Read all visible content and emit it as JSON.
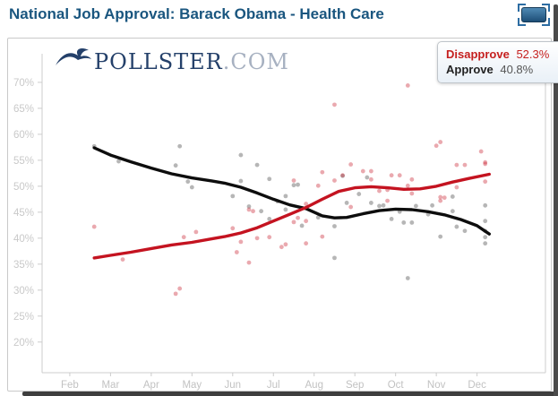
{
  "header": {
    "title": "National Job Approval: Barack Obama - Health Care"
  },
  "icons": {
    "embed": "selection-frame-icon",
    "logo": "pollster-bird-icon"
  },
  "branding": {
    "name": "POLLSTER",
    "suffix": ".COM"
  },
  "legend": {
    "items": [
      {
        "label": "Disapprove",
        "value": "52.3%",
        "color": "#c5201f"
      },
      {
        "label": "Approve",
        "value": "40.8%",
        "color": "#222222"
      }
    ]
  },
  "chart_data": {
    "type": "scatter",
    "title": "National Job Approval: Barack Obama - Health Care",
    "xlabel": "",
    "ylabel": "",
    "xlim": [
      1.32,
      13.68
    ],
    "ylim": [
      14.1,
      72.4
    ],
    "grid": false,
    "legend_position": "top-right",
    "colors": {
      "axis": "#cccccc",
      "y_tick_text": "#c9c9c9",
      "x_tick_text": "#c2c2c2"
    },
    "x_axis": {
      "ticks": [
        {
          "value": 2,
          "label": "Feb"
        },
        {
          "value": 3,
          "label": "Mar"
        },
        {
          "value": 4,
          "label": "Apr"
        },
        {
          "value": 5,
          "label": "May"
        },
        {
          "value": 6,
          "label": "Jun"
        },
        {
          "value": 7,
          "label": "Jul"
        },
        {
          "value": 8,
          "label": "Aug"
        },
        {
          "value": 9,
          "label": "Sep"
        },
        {
          "value": 10,
          "label": "Oct"
        },
        {
          "value": 11,
          "label": "Nov"
        },
        {
          "value": 12,
          "label": "Dec"
        }
      ]
    },
    "y_axis": {
      "ticks": [
        {
          "value": 70,
          "label": "70%"
        },
        {
          "value": 65,
          "label": "65%"
        },
        {
          "value": 60,
          "label": "60%"
        },
        {
          "value": 55,
          "label": "55%"
        },
        {
          "value": 50,
          "label": "50%"
        },
        {
          "value": 45,
          "label": "45%"
        },
        {
          "value": 40,
          "label": "40%"
        },
        {
          "value": 35,
          "label": "35%"
        },
        {
          "value": 30,
          "label": "30%"
        },
        {
          "value": 25,
          "label": "25%"
        },
        {
          "value": 20,
          "label": "20%"
        }
      ]
    },
    "series": [
      {
        "name": "Approve",
        "final_value": 40.8,
        "line_color": "#0d0d0d",
        "point_color": "rgba(110,110,110,0.5)",
        "trend": [
          [
            2.6,
            57.4
          ],
          [
            3.0,
            56.0
          ],
          [
            3.5,
            54.7
          ],
          [
            4.0,
            53.5
          ],
          [
            4.5,
            52.4
          ],
          [
            5.0,
            51.6
          ],
          [
            5.5,
            51.0
          ],
          [
            5.8,
            50.6
          ],
          [
            6.2,
            49.8
          ],
          [
            6.6,
            48.7
          ],
          [
            7.0,
            47.5
          ],
          [
            7.4,
            46.4
          ],
          [
            7.8,
            45.7
          ],
          [
            8.2,
            44.3
          ],
          [
            8.5,
            43.9
          ],
          [
            8.8,
            44.0
          ],
          [
            9.2,
            44.7
          ],
          [
            9.6,
            45.3
          ],
          [
            10.0,
            45.6
          ],
          [
            10.4,
            45.5
          ],
          [
            10.8,
            45.1
          ],
          [
            11.2,
            44.5
          ],
          [
            11.6,
            43.6
          ],
          [
            12.0,
            42.4
          ],
          [
            12.3,
            40.8
          ]
        ],
        "points": [
          [
            2.6,
            57.7
          ],
          [
            3.2,
            54.8
          ],
          [
            4.6,
            54.0
          ],
          [
            4.7,
            57.7
          ],
          [
            4.9,
            50.9
          ],
          [
            5.0,
            49.8
          ],
          [
            6.0,
            48.1
          ],
          [
            6.2,
            56.0
          ],
          [
            6.2,
            51.0
          ],
          [
            6.4,
            46.1
          ],
          [
            6.6,
            54.1
          ],
          [
            6.7,
            45.2
          ],
          [
            6.9,
            51.4
          ],
          [
            6.9,
            43.7
          ],
          [
            7.1,
            47.1
          ],
          [
            7.3,
            48.1
          ],
          [
            7.3,
            45.5
          ],
          [
            7.5,
            50.2
          ],
          [
            7.6,
            50.3
          ],
          [
            7.7,
            42.4
          ],
          [
            8.1,
            44.0
          ],
          [
            8.5,
            42.3
          ],
          [
            8.5,
            36.2
          ],
          [
            8.7,
            52.0
          ],
          [
            8.8,
            46.8
          ],
          [
            9.1,
            48.5
          ],
          [
            9.3,
            51.7
          ],
          [
            9.4,
            46.8
          ],
          [
            9.6,
            46.2
          ],
          [
            9.7,
            46.3
          ],
          [
            9.9,
            43.7
          ],
          [
            10.1,
            45.1
          ],
          [
            10.2,
            43.0
          ],
          [
            10.3,
            32.3
          ],
          [
            10.4,
            43.0
          ],
          [
            10.5,
            46.2
          ],
          [
            10.8,
            44.6
          ],
          [
            10.9,
            46.3
          ],
          [
            11.1,
            40.3
          ],
          [
            11.4,
            48.0
          ],
          [
            11.4,
            45.2
          ],
          [
            11.5,
            42.2
          ],
          [
            11.7,
            41.4
          ],
          [
            12.2,
            46.3
          ],
          [
            12.2,
            43.3
          ],
          [
            12.2,
            41.4
          ],
          [
            12.2,
            40.2
          ],
          [
            12.2,
            39.0
          ]
        ]
      },
      {
        "name": "Disapprove",
        "final_value": 52.3,
        "line_color": "#c41320",
        "point_color": "rgba(200,30,45,0.38)",
        "trend": [
          [
            2.6,
            36.2
          ],
          [
            3.0,
            36.7
          ],
          [
            3.5,
            37.3
          ],
          [
            4.0,
            38.0
          ],
          [
            4.5,
            38.7
          ],
          [
            5.0,
            39.2
          ],
          [
            5.5,
            39.9
          ],
          [
            5.8,
            40.3
          ],
          [
            6.2,
            41.0
          ],
          [
            6.6,
            42.0
          ],
          [
            7.0,
            43.3
          ],
          [
            7.4,
            44.6
          ],
          [
            7.8,
            45.9
          ],
          [
            8.2,
            47.5
          ],
          [
            8.6,
            49.0
          ],
          [
            9.0,
            49.7
          ],
          [
            9.4,
            49.9
          ],
          [
            9.8,
            49.7
          ],
          [
            10.2,
            49.4
          ],
          [
            10.6,
            49.5
          ],
          [
            11.0,
            50.0
          ],
          [
            11.4,
            50.8
          ],
          [
            11.8,
            51.5
          ],
          [
            12.3,
            52.3
          ]
        ],
        "points": [
          [
            2.6,
            42.2
          ],
          [
            3.3,
            35.9
          ],
          [
            4.6,
            29.3
          ],
          [
            4.7,
            30.3
          ],
          [
            4.8,
            40.2
          ],
          [
            5.1,
            41.2
          ],
          [
            6.0,
            41.9
          ],
          [
            6.1,
            37.3
          ],
          [
            6.2,
            39.3
          ],
          [
            6.4,
            35.3
          ],
          [
            6.4,
            45.5
          ],
          [
            6.5,
            45.2
          ],
          [
            6.6,
            40.0
          ],
          [
            6.9,
            40.2
          ],
          [
            7.2,
            38.3
          ],
          [
            7.3,
            38.8
          ],
          [
            7.5,
            43.1
          ],
          [
            7.5,
            51.1
          ],
          [
            7.6,
            43.9
          ],
          [
            7.8,
            43.3
          ],
          [
            7.8,
            39.0
          ],
          [
            7.8,
            46.6
          ],
          [
            8.1,
            50.1
          ],
          [
            8.2,
            40.3
          ],
          [
            8.2,
            52.7
          ],
          [
            8.5,
            65.7
          ],
          [
            8.5,
            51.1
          ],
          [
            8.7,
            52.1
          ],
          [
            8.9,
            54.2
          ],
          [
            8.9,
            46.0
          ],
          [
            9.2,
            52.9
          ],
          [
            9.4,
            52.9
          ],
          [
            9.4,
            51.3
          ],
          [
            9.6,
            49.1
          ],
          [
            9.8,
            49.3
          ],
          [
            9.8,
            47.2
          ],
          [
            9.9,
            52.1
          ],
          [
            10.1,
            52.1
          ],
          [
            10.3,
            50.1
          ],
          [
            10.3,
            69.4
          ],
          [
            10.4,
            51.3
          ],
          [
            10.4,
            48.6
          ],
          [
            11.0,
            57.8
          ],
          [
            11.1,
            58.5
          ],
          [
            11.1,
            47.2
          ],
          [
            11.1,
            47.9
          ],
          [
            11.2,
            47.8
          ],
          [
            11.5,
            54.1
          ],
          [
            11.5,
            49.8
          ],
          [
            11.7,
            54.1
          ],
          [
            12.1,
            56.7
          ],
          [
            12.2,
            54.6
          ],
          [
            12.2,
            54.3
          ],
          [
            12.2,
            50.9
          ]
        ]
      }
    ]
  }
}
